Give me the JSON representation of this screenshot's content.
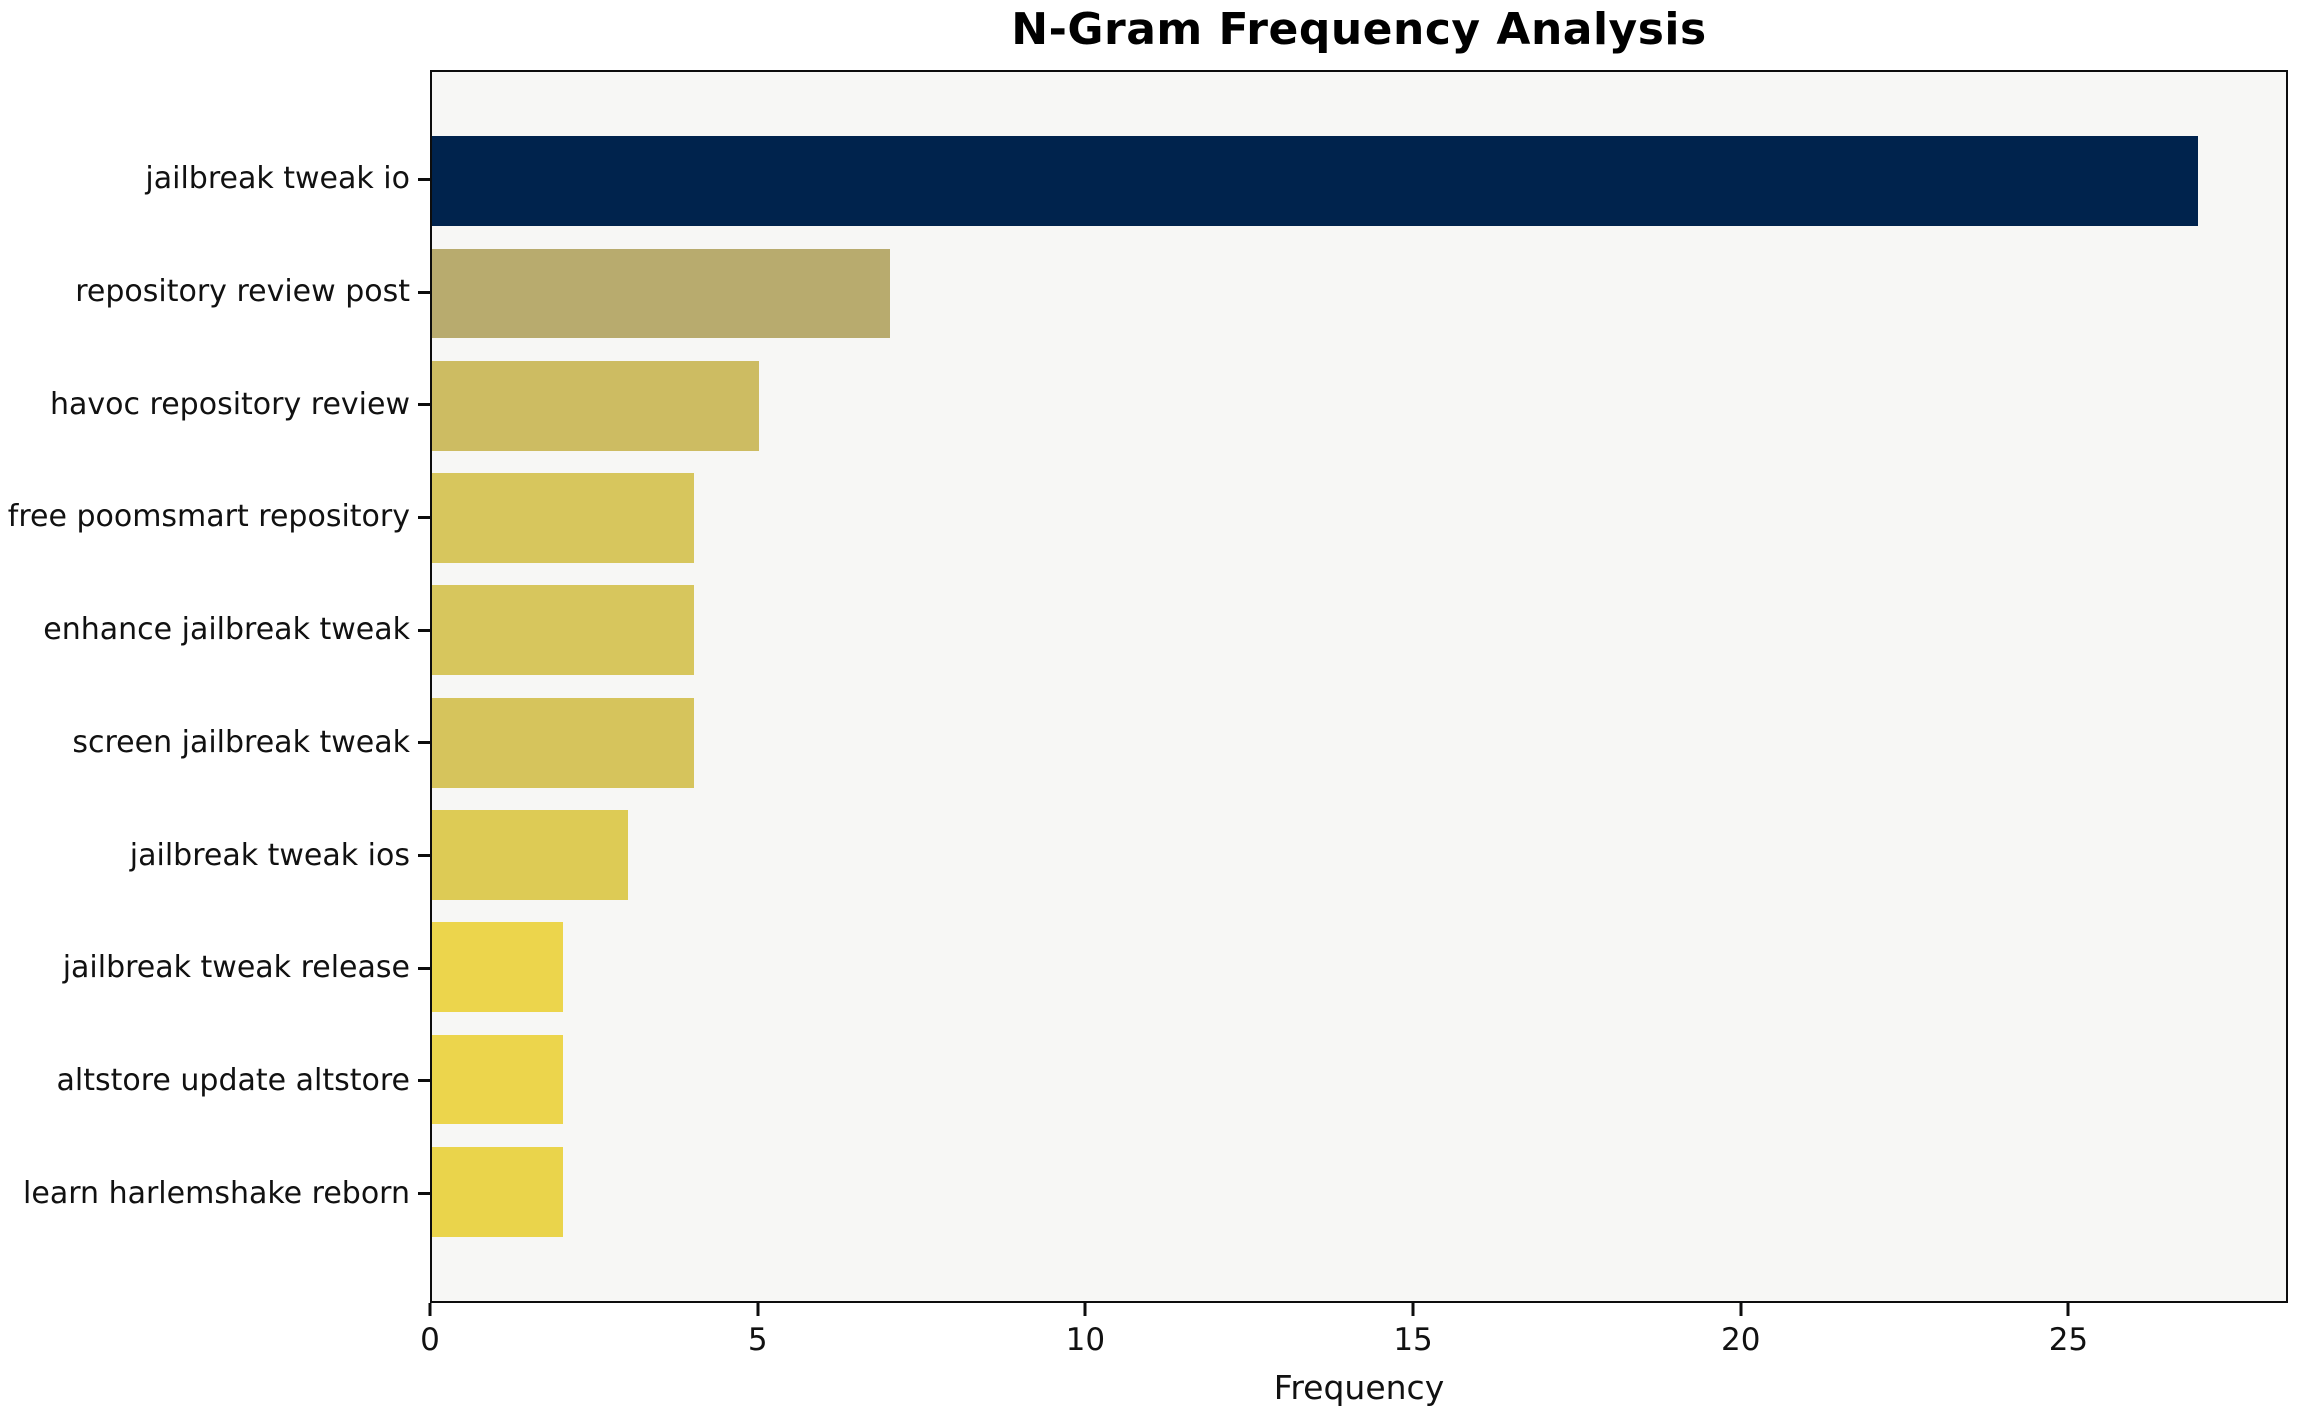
{
  "chart_data": {
    "type": "bar",
    "orientation": "horizontal",
    "title": "N-Gram Frequency Analysis",
    "xlabel": "Frequency",
    "categories": [
      "jailbreak tweak io",
      "repository review post",
      "havoc repository review",
      "free poomsmart repository",
      "enhance jailbreak tweak",
      "screen jailbreak tweak",
      "jailbreak tweak ios",
      "jailbreak tweak release",
      "altstore update altstore",
      "learn harlemshake reborn"
    ],
    "values": [
      27,
      7,
      5,
      4,
      4,
      4,
      3,
      2,
      2,
      2
    ],
    "bar_colors": [
      "#00234d",
      "#b8ab6e",
      "#cdbc62",
      "#d7c65d",
      "#d7c65d",
      "#d6c45c",
      "#ddcb55",
      "#ecd54c",
      "#ecd54c",
      "#ead44b"
    ],
    "xlim": [
      0,
      28.35
    ],
    "xticks": [
      0,
      5,
      10,
      15,
      20,
      25
    ],
    "grid": false,
    "legend": "none",
    "plot_background": "#f7f7f5",
    "figure_background": "#ffffff",
    "spine_color": "#0d0d0d",
    "text_color": "#111111"
  }
}
